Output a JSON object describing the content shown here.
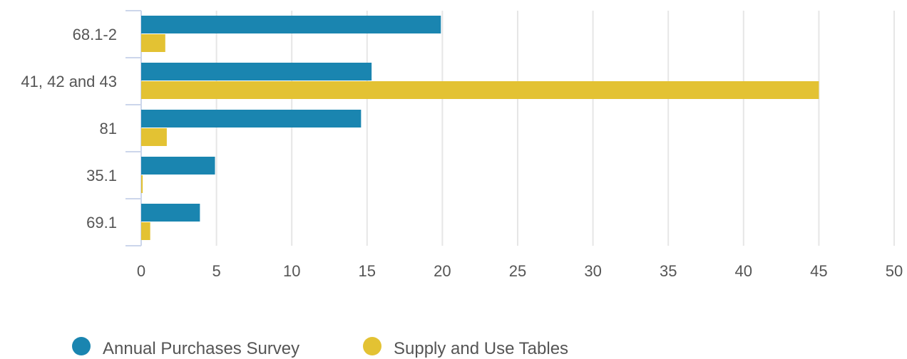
{
  "chart_data": {
    "type": "bar",
    "orientation": "horizontal",
    "categories": [
      "68.1-2",
      "41, 42 and 43",
      "81",
      "35.1",
      "69.1"
    ],
    "series": [
      {
        "name": "Annual Purchases Survey",
        "color": "#1a85b0",
        "values": [
          19.9,
          15.3,
          14.6,
          4.9,
          3.9
        ]
      },
      {
        "name": "Supply and Use Tables",
        "color": "#e3c233",
        "values": [
          1.6,
          45.0,
          1.7,
          0.1,
          0.6
        ]
      }
    ],
    "xlim": [
      0,
      50
    ],
    "x_ticks": [
      "0",
      "5",
      "10",
      "15",
      "20",
      "25",
      "30",
      "35",
      "40",
      "45",
      "50"
    ],
    "grid": "vertical",
    "legend_position": "bottom-left"
  }
}
